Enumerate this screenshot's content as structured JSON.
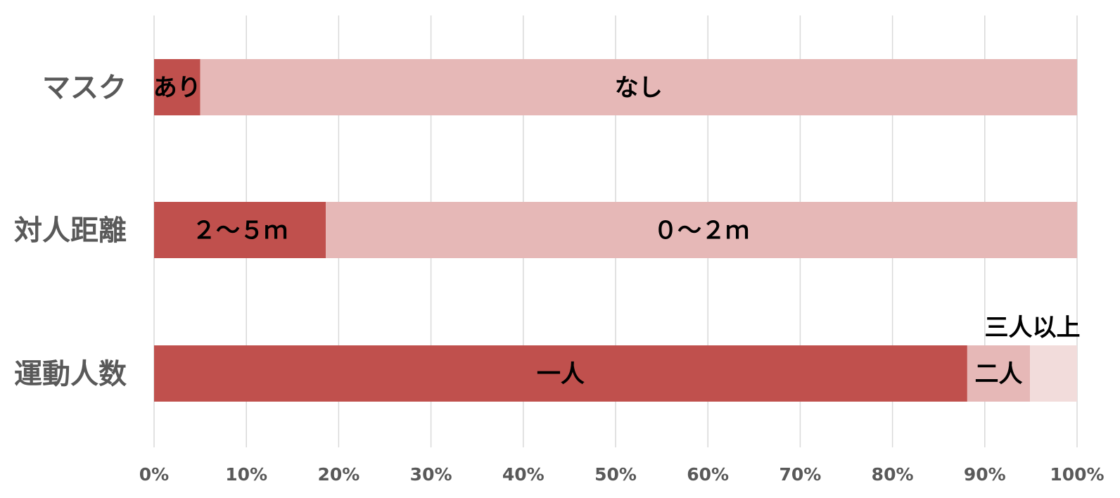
{
  "chart_data": {
    "type": "bar",
    "orientation": "horizontal",
    "stacked": true,
    "percent": true,
    "grid": true,
    "xlim": [
      0,
      100
    ],
    "x_ticks": [
      "0%",
      "10%",
      "20%",
      "30%",
      "40%",
      "50%",
      "60%",
      "70%",
      "80%",
      "90%",
      "100%"
    ],
    "categories": [
      "マスク",
      "対人距離",
      "運動人数"
    ],
    "bars": [
      {
        "category": "マスク",
        "segments": [
          {
            "label": "あり",
            "value": 5,
            "color": "#C0504D"
          },
          {
            "label": "なし",
            "value": 95,
            "color": "#E6B8B7"
          }
        ]
      },
      {
        "category": "対人距離",
        "segments": [
          {
            "label": "２～５ｍ",
            "value": 18.6,
            "color": "#C0504D"
          },
          {
            "label": "０～２ｍ",
            "value": 81.4,
            "color": "#E6B8B7"
          }
        ]
      },
      {
        "category": "運動人数",
        "segments": [
          {
            "label": "一人",
            "value": 88.1,
            "color": "#C0504D"
          },
          {
            "label": "二人",
            "value": 6.8,
            "color": "#E6B8B7"
          },
          {
            "label": "三人以上",
            "value": 5.1,
            "color": "#F2DCDB",
            "label_position": "above"
          }
        ]
      }
    ]
  }
}
